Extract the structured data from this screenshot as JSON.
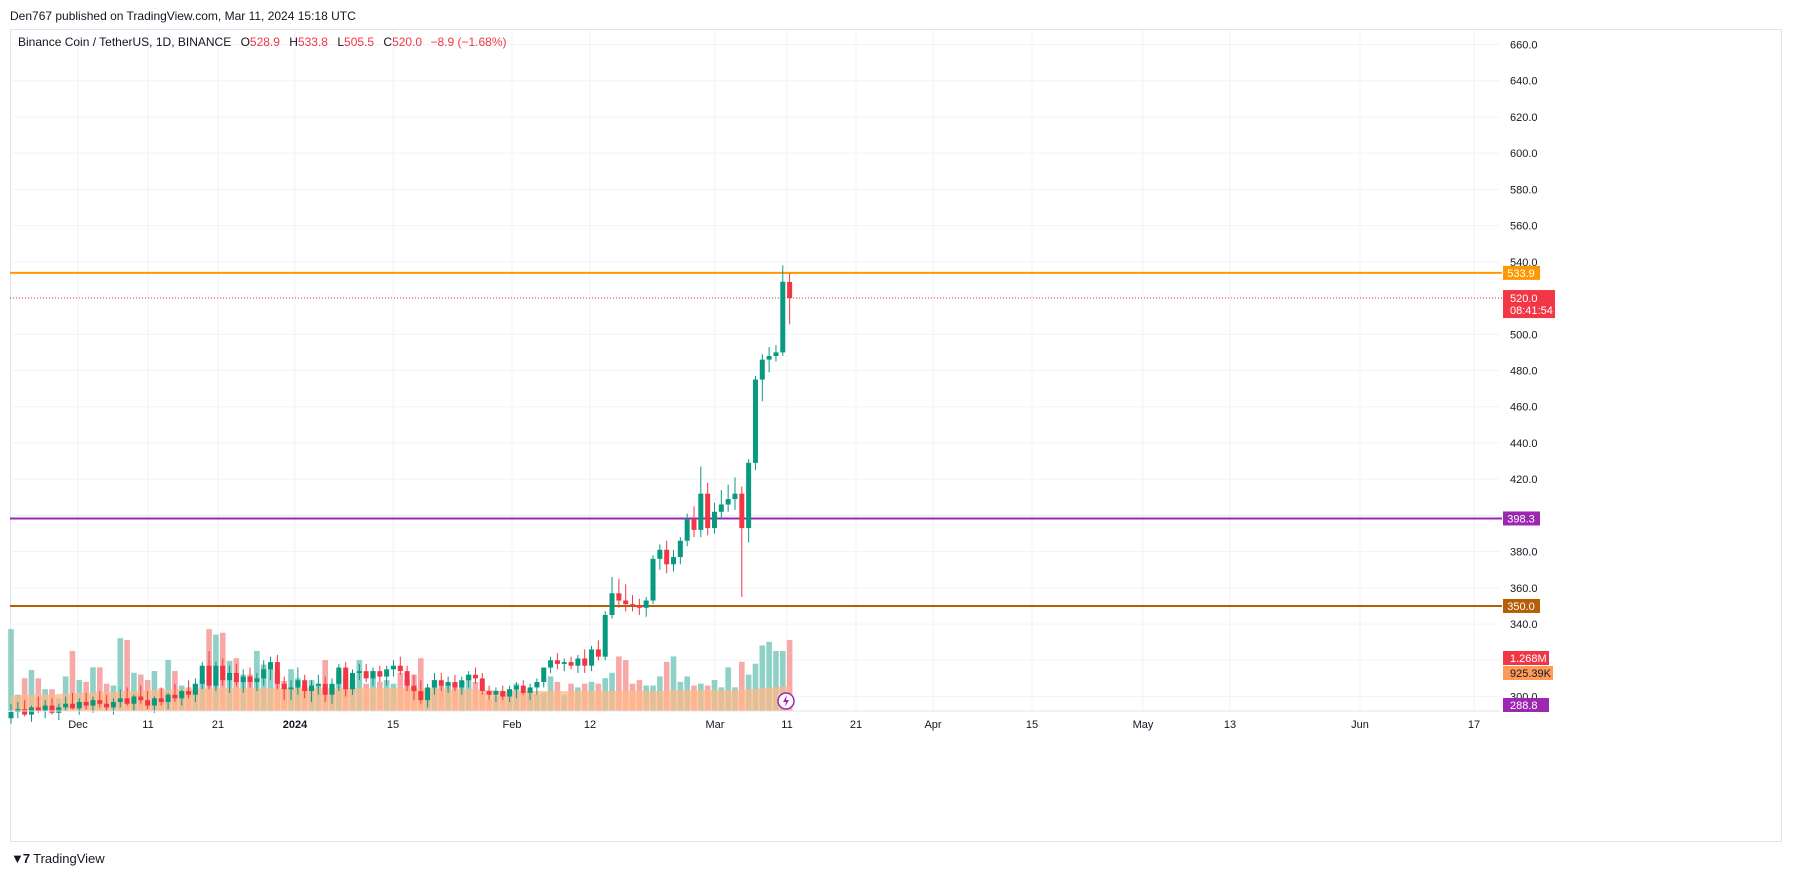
{
  "header": {
    "published": "Den767 published on TradingView.com, Mar 11, 2024 15:18 UTC"
  },
  "legend": {
    "symbol": "Binance Coin / TetherUS, 1D, BINANCE",
    "o_label": "O",
    "o_value": "528.9",
    "h_label": "H",
    "h_value": "533.8",
    "l_label": "L",
    "l_value": "505.5",
    "c_label": "C",
    "c_value": "520.0",
    "change": "−8.9 (−1.68%)"
  },
  "footer": {
    "brand": "TradingView"
  },
  "chart_data": {
    "type": "candlestick",
    "ylim": [
      292,
      668
    ],
    "y_ticks": [
      "300.0",
      "320.0",
      "340.0",
      "360.0",
      "380.0",
      "400.0",
      "420.0",
      "440.0",
      "460.0",
      "480.0",
      "500.0",
      "520.0",
      "540.0",
      "560.0",
      "580.0",
      "600.0",
      "620.0",
      "640.0",
      "660.0"
    ],
    "x_ticks": [
      "Dec",
      "11",
      "21",
      "2024",
      "15",
      "Feb",
      "12",
      "Mar",
      "11",
      "21",
      "Apr",
      "15",
      "May",
      "13",
      "Jun",
      "17"
    ],
    "horizontal_lines": [
      {
        "value": 533.9,
        "label": "533.9",
        "color": "#ff9800"
      },
      {
        "value": 398.3,
        "label": "398.3",
        "color": "#9c27b0"
      },
      {
        "value": 350.0,
        "label": "350.0",
        "color": "#b45f06"
      }
    ],
    "last_price": {
      "value": 520.0,
      "label": "520.0",
      "countdown": "08:41:54",
      "color": "#f23645"
    },
    "volume_badges": [
      {
        "label": "1.268M",
        "color": "#f23645"
      },
      {
        "label": "925.39K",
        "color": "#ff9a57"
      },
      {
        "label": "288.8",
        "color": "#9c27b0"
      }
    ],
    "colors": {
      "up": "#089981",
      "down": "#f23645",
      "vol_up": "#8fd0c7",
      "vol_down": "#f7a9a7",
      "vol_ma": "#ffb98a"
    },
    "candles": [
      {
        "o": 288.0,
        "h": 296.0,
        "l": 285.0,
        "c": 291.5
      },
      {
        "o": 291.5,
        "h": 297.0,
        "l": 288.0,
        "c": 293.0
      },
      {
        "o": 293.0,
        "h": 298.0,
        "l": 289.0,
        "c": 290.0
      },
      {
        "o": 290.0,
        "h": 295.0,
        "l": 286.0,
        "c": 294.0
      },
      {
        "o": 294.0,
        "h": 300.0,
        "l": 291.0,
        "c": 292.0
      },
      {
        "o": 292.0,
        "h": 298.0,
        "l": 288.0,
        "c": 295.0
      },
      {
        "o": 295.0,
        "h": 299.0,
        "l": 290.0,
        "c": 291.0
      },
      {
        "o": 291.0,
        "h": 296.0,
        "l": 287.0,
        "c": 294.0
      },
      {
        "o": 294.0,
        "h": 300.0,
        "l": 292.0,
        "c": 296.0
      },
      {
        "o": 296.0,
        "h": 302.0,
        "l": 293.0,
        "c": 293.5
      },
      {
        "o": 293.5,
        "h": 299.0,
        "l": 290.0,
        "c": 297.0
      },
      {
        "o": 297.0,
        "h": 302.0,
        "l": 293.0,
        "c": 295.0
      },
      {
        "o": 295.0,
        "h": 300.0,
        "l": 291.0,
        "c": 298.0
      },
      {
        "o": 298.0,
        "h": 303.0,
        "l": 294.0,
        "c": 296.0
      },
      {
        "o": 296.0,
        "h": 301.0,
        "l": 292.0,
        "c": 294.0
      },
      {
        "o": 294.0,
        "h": 299.0,
        "l": 290.0,
        "c": 297.0
      },
      {
        "o": 297.0,
        "h": 304.0,
        "l": 294.0,
        "c": 299.0
      },
      {
        "o": 299.0,
        "h": 305.0,
        "l": 295.0,
        "c": 296.0
      },
      {
        "o": 296.0,
        "h": 301.0,
        "l": 292.0,
        "c": 300.0
      },
      {
        "o": 300.0,
        "h": 306.0,
        "l": 296.0,
        "c": 298.0
      },
      {
        "o": 298.0,
        "h": 303.0,
        "l": 293.0,
        "c": 295.0
      },
      {
        "o": 295.0,
        "h": 300.0,
        "l": 291.0,
        "c": 299.0
      },
      {
        "o": 299.0,
        "h": 305.0,
        "l": 295.0,
        "c": 297.0
      },
      {
        "o": 297.0,
        "h": 302.0,
        "l": 293.0,
        "c": 301.0
      },
      {
        "o": 301.0,
        "h": 307.0,
        "l": 297.0,
        "c": 299.0
      },
      {
        "o": 299.0,
        "h": 304.0,
        "l": 295.0,
        "c": 303.0
      },
      {
        "o": 303.0,
        "h": 309.0,
        "l": 299.0,
        "c": 301.0
      },
      {
        "o": 301.0,
        "h": 310.0,
        "l": 297.0,
        "c": 307.0
      },
      {
        "o": 307.0,
        "h": 319.0,
        "l": 304.0,
        "c": 317.0
      },
      {
        "o": 317.0,
        "h": 325.0,
        "l": 304.0,
        "c": 306.0
      },
      {
        "o": 306.0,
        "h": 319.0,
        "l": 303.0,
        "c": 317.0
      },
      {
        "o": 317.0,
        "h": 321.0,
        "l": 306.0,
        "c": 309.0
      },
      {
        "o": 309.0,
        "h": 317.0,
        "l": 302.0,
        "c": 313.0
      },
      {
        "o": 313.0,
        "h": 318.0,
        "l": 306.0,
        "c": 308.0
      },
      {
        "o": 308.0,
        "h": 315.0,
        "l": 302.0,
        "c": 311.0
      },
      {
        "o": 311.0,
        "h": 316.0,
        "l": 305.0,
        "c": 308.0
      },
      {
        "o": 308.0,
        "h": 313.0,
        "l": 303.0,
        "c": 310.0
      },
      {
        "o": 310.0,
        "h": 320.0,
        "l": 306.0,
        "c": 315.0
      },
      {
        "o": 315.0,
        "h": 322.0,
        "l": 309.0,
        "c": 319.0
      },
      {
        "o": 319.0,
        "h": 323.0,
        "l": 304.0,
        "c": 307.0
      },
      {
        "o": 307.0,
        "h": 311.0,
        "l": 298.0,
        "c": 304.0
      },
      {
        "o": 304.0,
        "h": 309.0,
        "l": 298.0,
        "c": 305.0
      },
      {
        "o": 305.0,
        "h": 316.0,
        "l": 301.0,
        "c": 309.0
      },
      {
        "o": 309.0,
        "h": 312.0,
        "l": 299.0,
        "c": 303.0
      },
      {
        "o": 303.0,
        "h": 309.0,
        "l": 297.0,
        "c": 306.0
      },
      {
        "o": 306.0,
        "h": 312.0,
        "l": 301.0,
        "c": 307.0
      },
      {
        "o": 307.0,
        "h": 311.0,
        "l": 297.0,
        "c": 301.0
      },
      {
        "o": 301.0,
        "h": 310.0,
        "l": 296.0,
        "c": 307.0
      },
      {
        "o": 307.0,
        "h": 318.0,
        "l": 303.0,
        "c": 316.0
      },
      {
        "o": 316.0,
        "h": 319.0,
        "l": 300.0,
        "c": 304.0
      },
      {
        "o": 304.0,
        "h": 315.0,
        "l": 301.0,
        "c": 313.0
      },
      {
        "o": 313.0,
        "h": 318.0,
        "l": 309.0,
        "c": 314.0
      },
      {
        "o": 314.0,
        "h": 318.0,
        "l": 308.0,
        "c": 310.0
      },
      {
        "o": 310.0,
        "h": 316.0,
        "l": 306.0,
        "c": 314.0
      },
      {
        "o": 314.0,
        "h": 317.0,
        "l": 308.0,
        "c": 311.0
      },
      {
        "o": 311.0,
        "h": 317.0,
        "l": 306.0,
        "c": 315.0
      },
      {
        "o": 315.0,
        "h": 320.0,
        "l": 311.0,
        "c": 317.0
      },
      {
        "o": 317.0,
        "h": 322.0,
        "l": 312.0,
        "c": 314.0
      },
      {
        "o": 314.0,
        "h": 317.0,
        "l": 303.0,
        "c": 306.0
      },
      {
        "o": 306.0,
        "h": 312.0,
        "l": 298.0,
        "c": 303.0
      },
      {
        "o": 303.0,
        "h": 309.0,
        "l": 296.0,
        "c": 298.0
      },
      {
        "o": 298.0,
        "h": 307.0,
        "l": 294.0,
        "c": 305.0
      },
      {
        "o": 305.0,
        "h": 313.0,
        "l": 301.0,
        "c": 309.0
      },
      {
        "o": 309.0,
        "h": 313.0,
        "l": 303.0,
        "c": 306.0
      },
      {
        "o": 306.0,
        "h": 311.0,
        "l": 302.0,
        "c": 308.0
      },
      {
        "o": 308.0,
        "h": 312.0,
        "l": 303.0,
        "c": 305.0
      },
      {
        "o": 305.0,
        "h": 311.0,
        "l": 301.0,
        "c": 309.0
      },
      {
        "o": 309.0,
        "h": 314.0,
        "l": 305.0,
        "c": 312.0
      },
      {
        "o": 312.0,
        "h": 316.0,
        "l": 307.0,
        "c": 310.0
      },
      {
        "o": 310.0,
        "h": 313.0,
        "l": 301.0,
        "c": 303.0
      },
      {
        "o": 303.0,
        "h": 306.0,
        "l": 298.0,
        "c": 301.0
      },
      {
        "o": 301.0,
        "h": 305.0,
        "l": 297.0,
        "c": 303.0
      },
      {
        "o": 303.0,
        "h": 306.0,
        "l": 298.0,
        "c": 300.0
      },
      {
        "o": 300.0,
        "h": 306.0,
        "l": 297.0,
        "c": 304.0
      },
      {
        "o": 304.0,
        "h": 308.0,
        "l": 299.0,
        "c": 306.0
      },
      {
        "o": 306.0,
        "h": 309.0,
        "l": 301.0,
        "c": 302.0
      },
      {
        "o": 302.0,
        "h": 307.0,
        "l": 298.0,
        "c": 305.0
      },
      {
        "o": 305.0,
        "h": 310.0,
        "l": 301.0,
        "c": 308.0
      },
      {
        "o": 308.0,
        "h": 315.0,
        "l": 305.0,
        "c": 316.0
      },
      {
        "o": 316.0,
        "h": 322.0,
        "l": 313.0,
        "c": 320.0
      },
      {
        "o": 320.0,
        "h": 324.0,
        "l": 315.0,
        "c": 318.0
      },
      {
        "o": 318.0,
        "h": 321.0,
        "l": 314.0,
        "c": 319.0
      },
      {
        "o": 319.0,
        "h": 322.0,
        "l": 315.0,
        "c": 317.0
      },
      {
        "o": 317.0,
        "h": 323.0,
        "l": 313.0,
        "c": 321.0
      },
      {
        "o": 321.0,
        "h": 326.0,
        "l": 313.0,
        "c": 317.0
      },
      {
        "o": 317.0,
        "h": 328.0,
        "l": 314.0,
        "c": 326.0
      },
      {
        "o": 326.0,
        "h": 331.0,
        "l": 320.0,
        "c": 322.0
      },
      {
        "o": 322.0,
        "h": 347.0,
        "l": 320.0,
        "c": 345.0
      },
      {
        "o": 345.0,
        "h": 366.0,
        "l": 343.0,
        "c": 357.0
      },
      {
        "o": 357.0,
        "h": 365.0,
        "l": 349.0,
        "c": 353.0
      },
      {
        "o": 353.0,
        "h": 362.0,
        "l": 347.0,
        "c": 351.0
      },
      {
        "o": 351.0,
        "h": 356.0,
        "l": 347.0,
        "c": 350.0
      },
      {
        "o": 350.0,
        "h": 354.0,
        "l": 345.0,
        "c": 349.0
      },
      {
        "o": 349.0,
        "h": 355.0,
        "l": 344.0,
        "c": 353.0
      },
      {
        "o": 353.0,
        "h": 378.0,
        "l": 351.0,
        "c": 376.0
      },
      {
        "o": 376.0,
        "h": 384.0,
        "l": 370.0,
        "c": 381.0
      },
      {
        "o": 381.0,
        "h": 386.0,
        "l": 368.0,
        "c": 373.0
      },
      {
        "o": 373.0,
        "h": 381.0,
        "l": 369.0,
        "c": 377.0
      },
      {
        "o": 377.0,
        "h": 388.0,
        "l": 373.0,
        "c": 386.0
      },
      {
        "o": 386.0,
        "h": 401.0,
        "l": 383.0,
        "c": 398.0
      },
      {
        "o": 398.0,
        "h": 405.0,
        "l": 388.0,
        "c": 392.0
      },
      {
        "o": 392.0,
        "h": 427.0,
        "l": 388.0,
        "c": 412.0
      },
      {
        "o": 412.0,
        "h": 418.0,
        "l": 389.0,
        "c": 393.0
      },
      {
        "o": 393.0,
        "h": 407.0,
        "l": 390.0,
        "c": 402.0
      },
      {
        "o": 402.0,
        "h": 414.0,
        "l": 398.0,
        "c": 406.0
      },
      {
        "o": 406.0,
        "h": 417.0,
        "l": 402.0,
        "c": 409.0
      },
      {
        "o": 409.0,
        "h": 421.0,
        "l": 403.0,
        "c": 412.0
      },
      {
        "o": 412.0,
        "h": 416.0,
        "l": 355.0,
        "c": 393.0
      },
      {
        "o": 393.0,
        "h": 431.0,
        "l": 385.0,
        "c": 429.0
      },
      {
        "o": 429.0,
        "h": 477.0,
        "l": 425.0,
        "c": 475.0
      },
      {
        "o": 475.0,
        "h": 489.0,
        "l": 463.0,
        "c": 486.0
      },
      {
        "o": 486.0,
        "h": 493.0,
        "l": 479.0,
        "c": 488.0
      },
      {
        "o": 488.0,
        "h": 494.0,
        "l": 485.0,
        "c": 490.0
      },
      {
        "o": 490.0,
        "h": 538.0,
        "l": 488.0,
        "c": 529.0
      },
      {
        "o": 528.9,
        "h": 533.8,
        "l": 505.5,
        "c": 520.0
      }
    ],
    "volume": [
      0.9,
      0.18,
      0.36,
      0.45,
      0.36,
      0.24,
      0.24,
      0.14,
      0.38,
      0.66,
      0.34,
      0.32,
      0.48,
      0.48,
      0.3,
      0.28,
      0.8,
      0.78,
      0.42,
      0.4,
      0.34,
      0.44,
      0.25,
      0.56,
      0.44,
      0.28,
      0.26,
      0.3,
      0.34,
      0.9,
      0.84,
      0.86,
      0.55,
      0.58,
      0.4,
      0.4,
      0.66,
      0.51,
      0.46,
      0.42,
      0.33,
      0.46,
      0.36,
      0.28,
      0.34,
      0.3,
      0.56,
      0.29,
      0.44,
      0.4,
      0.34,
      0.56,
      0.3,
      0.44,
      0.32,
      0.34,
      0.3,
      0.42,
      0.34,
      0.4,
      0.58,
      0.2,
      0.34,
      0.28,
      0.3,
      0.3,
      0.32,
      0.4,
      0.32,
      0.2,
      0.12,
      0.16,
      0.18,
      0.24,
      0.3,
      0.2,
      0.22,
      0.18,
      0.2,
      0.38,
      0.32,
      0.18,
      0.3,
      0.26,
      0.3,
      0.32,
      0.3,
      0.36,
      0.42,
      0.6,
      0.56,
      0.3,
      0.34,
      0.28,
      0.28,
      0.38,
      0.54,
      0.6,
      0.32,
      0.38,
      0.28,
      0.3,
      0.28,
      0.34,
      0.26,
      0.48,
      0.26,
      0.54,
      0.4,
      0.52,
      0.72,
      0.76,
      0.66,
      0.66,
      0.78
    ],
    "volume_ma": [
      0.17,
      0.17,
      0.18,
      0.18,
      0.18,
      0.18,
      0.18,
      0.19,
      0.19,
      0.19,
      0.2,
      0.2,
      0.2,
      0.21,
      0.21,
      0.21,
      0.22,
      0.22,
      0.22,
      0.22,
      0.23,
      0.23,
      0.23,
      0.23,
      0.24,
      0.24,
      0.24,
      0.24,
      0.25,
      0.25,
      0.25,
      0.25,
      0.25,
      0.25,
      0.25,
      0.25,
      0.25,
      0.25,
      0.25,
      0.25,
      0.25,
      0.25,
      0.25,
      0.25,
      0.25,
      0.25,
      0.25,
      0.25,
      0.25,
      0.25,
      0.25,
      0.25,
      0.25,
      0.25,
      0.25,
      0.25,
      0.25,
      0.25,
      0.25,
      0.25,
      0.25,
      0.25,
      0.25,
      0.25,
      0.24,
      0.24,
      0.24,
      0.24,
      0.23,
      0.23,
      0.23,
      0.23,
      0.22,
      0.22,
      0.22,
      0.22,
      0.22,
      0.22,
      0.22,
      0.22,
      0.22,
      0.22,
      0.22,
      0.22,
      0.22,
      0.22,
      0.22,
      0.22,
      0.22,
      0.22,
      0.22,
      0.22,
      0.22,
      0.22,
      0.22,
      0.22,
      0.22,
      0.23,
      0.23,
      0.23,
      0.23,
      0.23,
      0.23,
      0.23,
      0.23,
      0.23,
      0.23,
      0.23,
      0.24,
      0.24,
      0.25,
      0.26,
      0.26,
      0.27,
      0.27
    ]
  }
}
